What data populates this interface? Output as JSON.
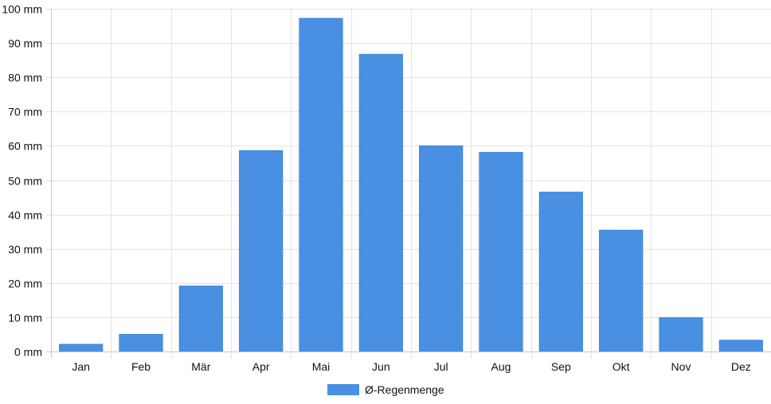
{
  "chart_data": {
    "type": "bar",
    "categories": [
      "Jan",
      "Feb",
      "Mär",
      "Apr",
      "Mai",
      "Jun",
      "Jul",
      "Aug",
      "Sep",
      "Okt",
      "Nov",
      "Dez"
    ],
    "series": [
      {
        "name": "Ø-Regenmenge",
        "values": [
          2.1,
          5.0,
          19.1,
          58.6,
          97.2,
          86.7,
          60.0,
          58.1,
          46.5,
          35.4,
          9.9,
          3.3
        ],
        "color": "#4a90e2"
      }
    ],
    "ylim": [
      0,
      100
    ],
    "y_ticks": [
      0,
      10,
      20,
      30,
      40,
      50,
      60,
      70,
      80,
      90,
      100
    ],
    "y_unit": "mm",
    "grid": true,
    "legend_position": "bottom"
  }
}
